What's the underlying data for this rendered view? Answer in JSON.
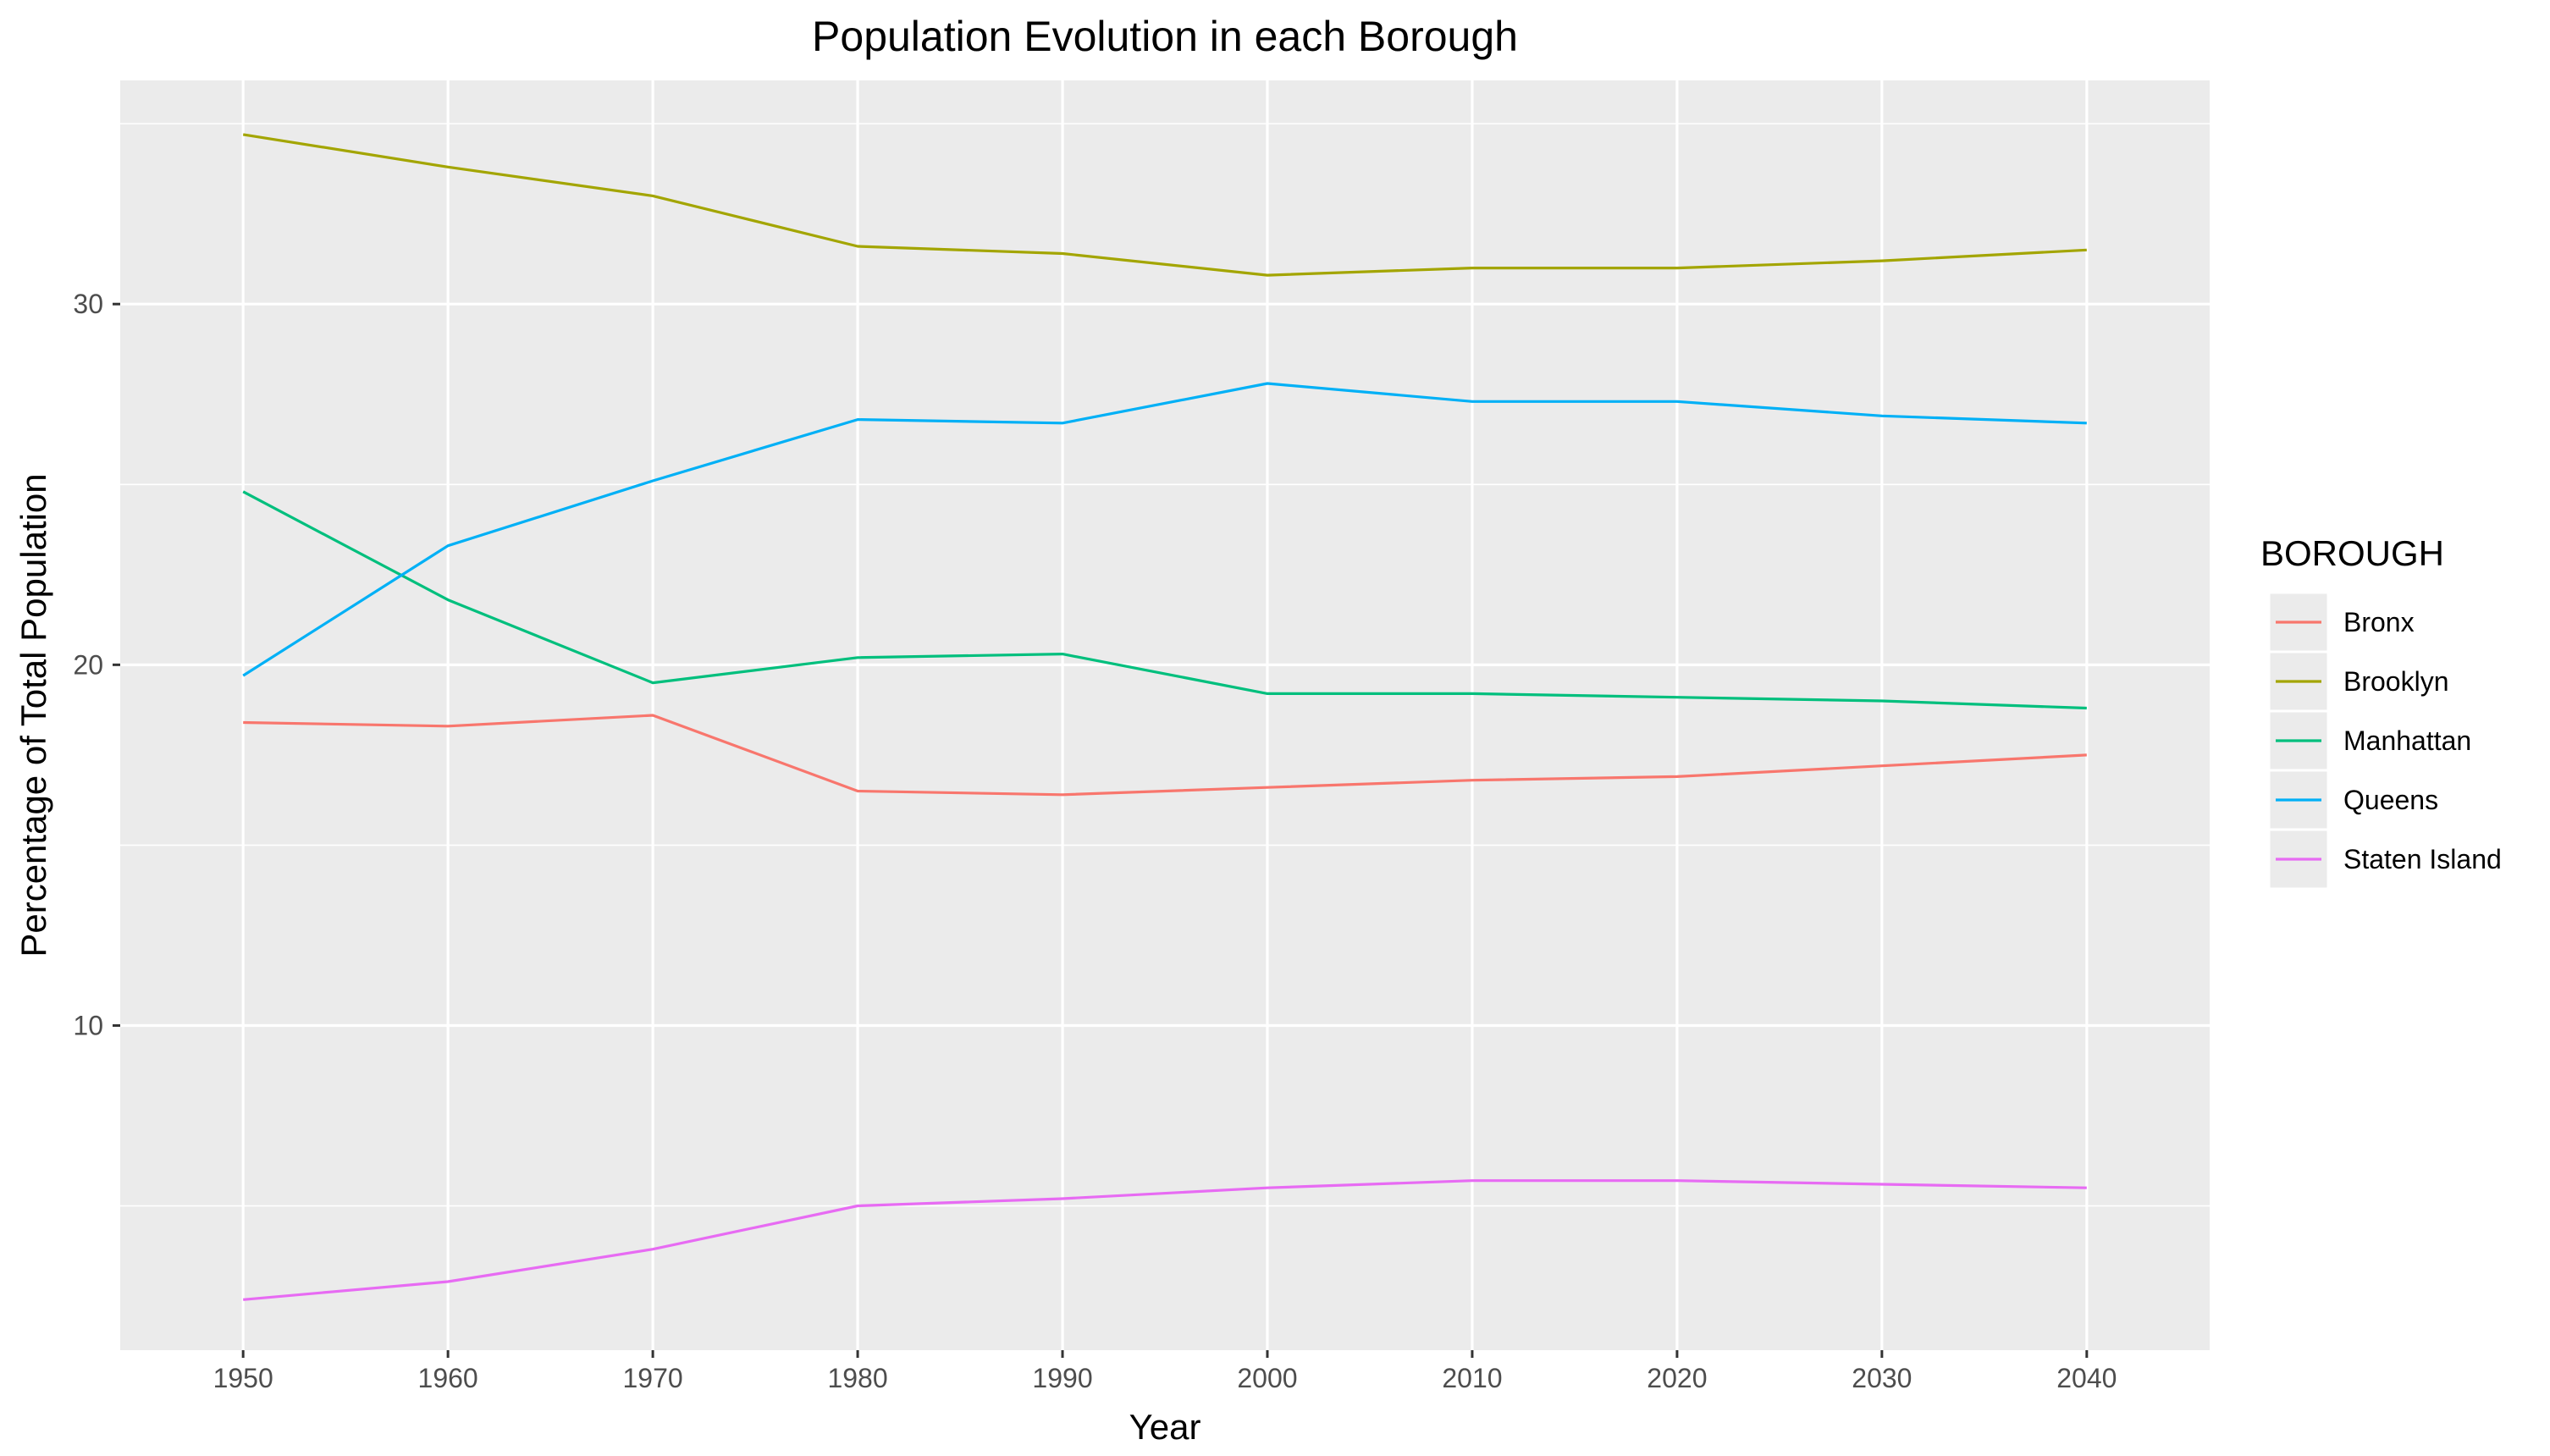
{
  "chart_data": {
    "type": "line",
    "title": "Population Evolution in each Borough",
    "xlabel": "Year",
    "ylabel": "Percentage of Total Population",
    "x": [
      1950,
      1960,
      1970,
      1980,
      1990,
      2000,
      2010,
      2020,
      2030,
      2040
    ],
    "xlim": [
      1944,
      2046
    ],
    "ylim": [
      1.0,
      36.2
    ],
    "x_ticks": [
      "1950",
      "1960",
      "1970",
      "1980",
      "1990",
      "2000",
      "2010",
      "2020",
      "2030",
      "2040"
    ],
    "y_ticks": [
      {
        "value": 10,
        "label": "10"
      },
      {
        "value": 20,
        "label": "20"
      },
      {
        "value": 30,
        "label": "30"
      }
    ],
    "y_minor_ticks": [
      5,
      15,
      25,
      35
    ],
    "grid": true,
    "legend": {
      "title": "BOROUGH",
      "position": "right"
    },
    "series": [
      {
        "name": "Bronx",
        "color": "#F8766D",
        "values": [
          18.4,
          18.3,
          18.6,
          16.5,
          16.4,
          16.6,
          16.8,
          16.9,
          17.2,
          17.5
        ]
      },
      {
        "name": "Brooklyn",
        "color": "#A3A500",
        "values": [
          34.7,
          33.8,
          33.0,
          31.6,
          31.4,
          30.8,
          31.0,
          31.0,
          31.2,
          31.5
        ]
      },
      {
        "name": "Manhattan",
        "color": "#00BF7D",
        "values": [
          24.8,
          21.8,
          19.5,
          20.2,
          20.3,
          19.2,
          19.2,
          19.1,
          19.0,
          18.8
        ]
      },
      {
        "name": "Queens",
        "color": "#00B0F6",
        "values": [
          19.7,
          23.3,
          25.1,
          26.8,
          26.7,
          27.8,
          27.3,
          27.3,
          26.9,
          26.7
        ]
      },
      {
        "name": "Staten Island",
        "color": "#E76BF3",
        "values": [
          2.4,
          2.9,
          3.8,
          5.0,
          5.2,
          5.5,
          5.7,
          5.7,
          5.6,
          5.5
        ]
      }
    ]
  }
}
